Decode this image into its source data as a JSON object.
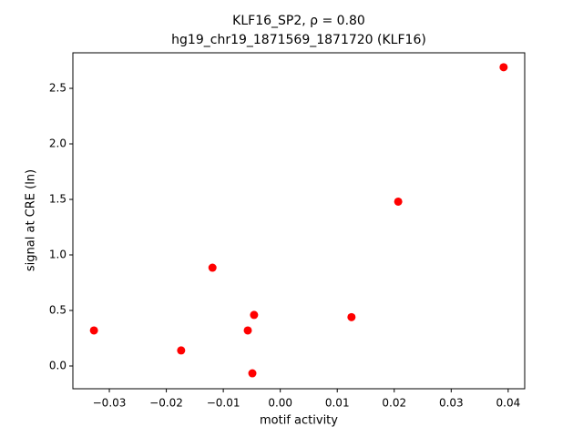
{
  "chart_data": {
    "type": "scatter",
    "title": "KLF16_SP2, ρ = 0.80",
    "subtitle": "hg19_chr19_1871569_1871720 (KLF16)",
    "x_label": "motif activity",
    "y_label": "signal at CRE (ln)",
    "color": "#ff0000",
    "x": [
      0.0392,
      0.0207,
      -0.0119,
      -0.0327,
      -0.0174,
      -0.0057,
      -0.0046,
      -0.0049,
      0.0125
    ],
    "values": [
      2.69,
      1.48,
      0.885,
      0.32,
      0.14,
      0.32,
      0.46,
      -0.066,
      0.44
    ],
    "xlim": [
      -0.0364,
      0.0429
    ],
    "ylim": [
      -0.205,
      2.82
    ],
    "xticks": [
      {
        "value": -0.03,
        "label": "−0.03"
      },
      {
        "value": -0.02,
        "label": "−0.02"
      },
      {
        "value": -0.01,
        "label": "−0.01"
      },
      {
        "value": 0,
        "label": "0.00"
      },
      0.01,
      0.02,
      0.03,
      0.04
    ],
    "yticks": [
      {
        "value": 0,
        "label": "0.0"
      },
      0.5,
      {
        "value": 1,
        "label": "1.0"
      },
      1.5,
      {
        "value": 2,
        "label": "2.0"
      },
      2.5
    ],
    "grid": false
  }
}
